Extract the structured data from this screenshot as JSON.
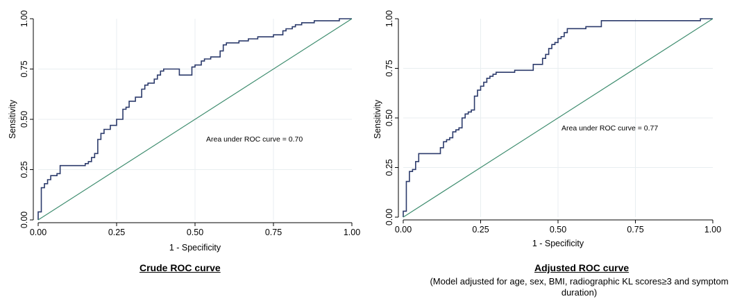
{
  "charts": [
    {
      "panel": "left",
      "caption": "Crude ROC curve",
      "subcaption": "",
      "chart_data": {
        "type": "line",
        "title": "",
        "xlabel": "1 - Specificity",
        "ylabel": "Sensitivity",
        "xlim": [
          0,
          1
        ],
        "ylim": [
          0,
          1
        ],
        "xticks": [
          "0.00",
          "0.25",
          "0.50",
          "0.75",
          "1.00"
        ],
        "yticks": [
          "0.00",
          "0.25",
          "0.50",
          "0.75",
          "1.00"
        ],
        "grid": true,
        "annotation": "Area under ROC curve = 0.70",
        "series": [
          {
            "role": "roc",
            "color": "#2b3a6b",
            "x": [
              0.0,
              0.0,
              0.01,
              0.01,
              0.02,
              0.02,
              0.03,
              0.03,
              0.04,
              0.04,
              0.06,
              0.06,
              0.07,
              0.07,
              0.15,
              0.15,
              0.16,
              0.16,
              0.17,
              0.17,
              0.18,
              0.18,
              0.19,
              0.19,
              0.2,
              0.2,
              0.21,
              0.21,
              0.23,
              0.23,
              0.25,
              0.25,
              0.27,
              0.27,
              0.28,
              0.28,
              0.29,
              0.29,
              0.31,
              0.31,
              0.33,
              0.33,
              0.34,
              0.34,
              0.35,
              0.35,
              0.37,
              0.37,
              0.38,
              0.38,
              0.39,
              0.39,
              0.4,
              0.4,
              0.45,
              0.45,
              0.49,
              0.49,
              0.5,
              0.5,
              0.52,
              0.52,
              0.53,
              0.53,
              0.55,
              0.55,
              0.58,
              0.58,
              0.59,
              0.59,
              0.6,
              0.6,
              0.64,
              0.64,
              0.67,
              0.67,
              0.7,
              0.7,
              0.75,
              0.75,
              0.78,
              0.78,
              0.79,
              0.79,
              0.81,
              0.81,
              0.82,
              0.82,
              0.84,
              0.84,
              0.88,
              0.88,
              0.96,
              0.96,
              1.0
            ],
            "y": [
              0.0,
              0.04,
              0.04,
              0.16,
              0.16,
              0.18,
              0.18,
              0.2,
              0.2,
              0.22,
              0.22,
              0.23,
              0.23,
              0.27,
              0.27,
              0.28,
              0.28,
              0.29,
              0.29,
              0.31,
              0.31,
              0.33,
              0.33,
              0.4,
              0.4,
              0.43,
              0.43,
              0.45,
              0.45,
              0.47,
              0.47,
              0.5,
              0.5,
              0.55,
              0.55,
              0.56,
              0.56,
              0.59,
              0.59,
              0.61,
              0.61,
              0.65,
              0.65,
              0.67,
              0.67,
              0.68,
              0.68,
              0.7,
              0.7,
              0.72,
              0.72,
              0.74,
              0.74,
              0.75,
              0.75,
              0.72,
              0.72,
              0.76,
              0.76,
              0.77,
              0.77,
              0.79,
              0.79,
              0.8,
              0.8,
              0.81,
              0.81,
              0.84,
              0.84,
              0.87,
              0.87,
              0.88,
              0.88,
              0.89,
              0.89,
              0.9,
              0.9,
              0.91,
              0.91,
              0.92,
              0.92,
              0.94,
              0.94,
              0.95,
              0.95,
              0.96,
              0.96,
              0.97,
              0.97,
              0.98,
              0.98,
              0.99,
              0.99,
              1.0,
              1.0
            ]
          },
          {
            "role": "reference",
            "color": "#3d8c6e",
            "x": [
              0,
              1
            ],
            "y": [
              0,
              1
            ]
          }
        ]
      }
    },
    {
      "panel": "right",
      "caption": "Adjusted ROC curve",
      "subcaption": "(Model adjusted for age, sex, BMI, radiographic KL scores≥3 and symptom duration)",
      "chart_data": {
        "type": "line",
        "title": "",
        "xlabel": "1 - Specificity",
        "ylabel": "Sensitivity",
        "xlim": [
          0,
          1
        ],
        "ylim": [
          0,
          1
        ],
        "xticks": [
          "0.00",
          "0.25",
          "0.50",
          "0.75",
          "1.00"
        ],
        "yticks": [
          "0.00",
          "0.25",
          "0.50",
          "0.75",
          "1.00"
        ],
        "grid": true,
        "annotation": "Area under ROC curve = 0.77",
        "series": [
          {
            "role": "roc",
            "color": "#2b3a6b",
            "x": [
              0.0,
              0.0,
              0.01,
              0.01,
              0.02,
              0.02,
              0.03,
              0.03,
              0.04,
              0.04,
              0.05,
              0.05,
              0.07,
              0.07,
              0.12,
              0.12,
              0.13,
              0.13,
              0.14,
              0.14,
              0.15,
              0.15,
              0.16,
              0.16,
              0.17,
              0.17,
              0.18,
              0.18,
              0.19,
              0.19,
              0.2,
              0.2,
              0.21,
              0.21,
              0.22,
              0.22,
              0.23,
              0.23,
              0.24,
              0.24,
              0.25,
              0.25,
              0.26,
              0.26,
              0.27,
              0.27,
              0.28,
              0.28,
              0.29,
              0.29,
              0.3,
              0.3,
              0.33,
              0.33,
              0.36,
              0.36,
              0.42,
              0.42,
              0.45,
              0.45,
              0.46,
              0.46,
              0.47,
              0.47,
              0.48,
              0.48,
              0.49,
              0.49,
              0.5,
              0.5,
              0.51,
              0.51,
              0.52,
              0.52,
              0.53,
              0.53,
              0.55,
              0.55,
              0.59,
              0.59,
              0.64,
              0.64,
              0.96,
              0.96,
              1.0
            ],
            "y": [
              0.0,
              0.03,
              0.03,
              0.18,
              0.18,
              0.23,
              0.23,
              0.24,
              0.24,
              0.28,
              0.28,
              0.32,
              0.32,
              0.32,
              0.32,
              0.35,
              0.35,
              0.38,
              0.38,
              0.39,
              0.39,
              0.4,
              0.4,
              0.43,
              0.43,
              0.44,
              0.44,
              0.45,
              0.45,
              0.5,
              0.5,
              0.52,
              0.52,
              0.53,
              0.53,
              0.54,
              0.54,
              0.61,
              0.61,
              0.64,
              0.64,
              0.66,
              0.66,
              0.68,
              0.68,
              0.7,
              0.7,
              0.71,
              0.71,
              0.72,
              0.72,
              0.73,
              0.73,
              0.73,
              0.73,
              0.74,
              0.74,
              0.77,
              0.77,
              0.8,
              0.8,
              0.82,
              0.82,
              0.85,
              0.85,
              0.87,
              0.87,
              0.88,
              0.88,
              0.9,
              0.9,
              0.91,
              0.91,
              0.93,
              0.93,
              0.95,
              0.95,
              0.95,
              0.95,
              0.96,
              0.96,
              0.99,
              0.99,
              1.0,
              1.0
            ]
          },
          {
            "role": "reference",
            "color": "#3d8c6e",
            "x": [
              0,
              1
            ],
            "y": [
              0,
              1
            ]
          }
        ]
      }
    }
  ]
}
